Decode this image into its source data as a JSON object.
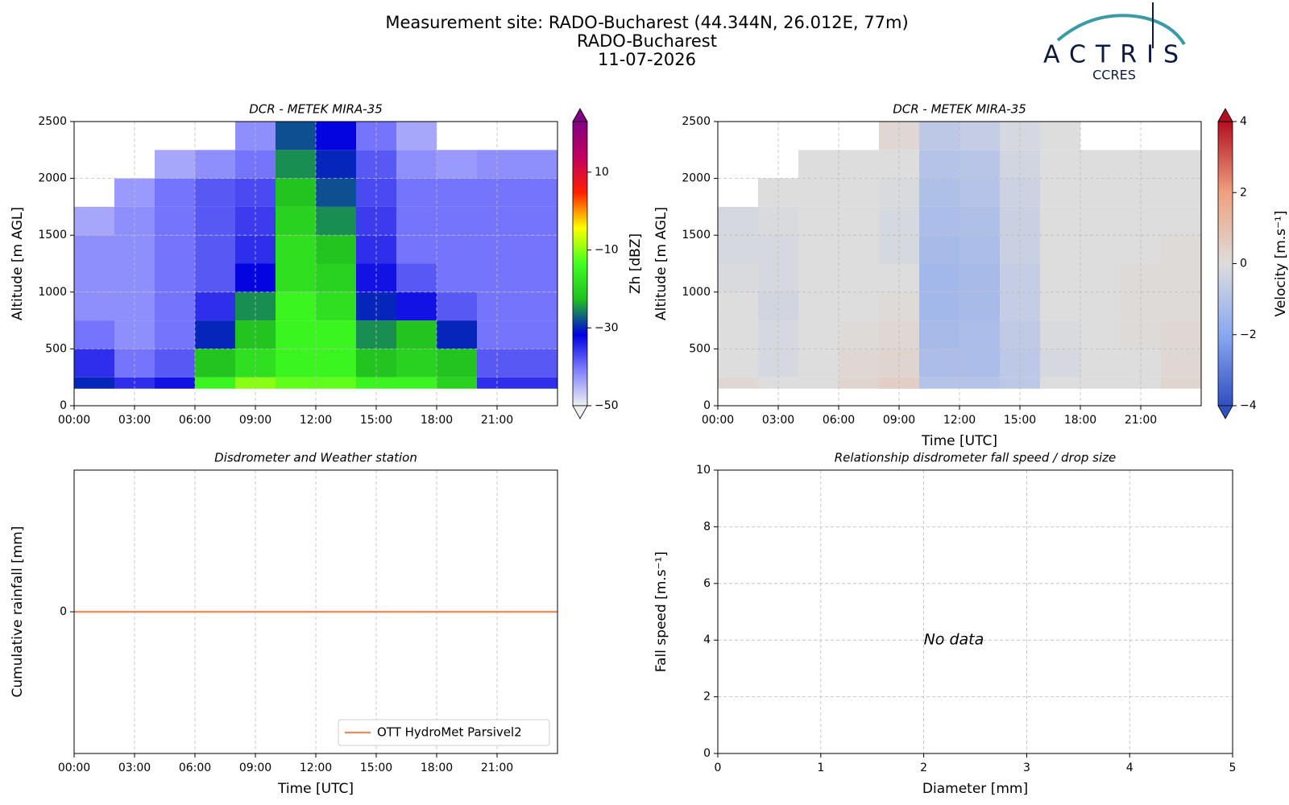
{
  "header": {
    "title": "Measurement site: RADO-Bucharest (44.344N, 26.012E, 77m)",
    "subtitle": "RADO-Bucharest",
    "date": "11-07-2026",
    "logo_text": "ACTRIS",
    "logo_sub": "CCRES"
  },
  "chart_data": [
    {
      "type": "heatmap",
      "title": "DCR - METEK MIRA-35",
      "y_label": "Altitude [m AGL]",
      "xlim": [
        0,
        24
      ],
      "xticks": [
        {
          "value": 0,
          "label": "00:00"
        },
        {
          "value": 3,
          "label": "03:00"
        },
        {
          "value": 6,
          "label": "06:00"
        },
        {
          "value": 9,
          "label": "09:00"
        },
        {
          "value": 12,
          "label": "12:00"
        },
        {
          "value": 15,
          "label": "15:00"
        },
        {
          "value": 18,
          "label": "18:00"
        },
        {
          "value": 21,
          "label": "21:00"
        }
      ],
      "ylim": [
        0,
        2500
      ],
      "yticks": [
        0,
        500,
        1000,
        1500,
        2000,
        2500
      ],
      "grid": true,
      "xbins": [
        0,
        2,
        4,
        6,
        8,
        10,
        12,
        14,
        16,
        18,
        20,
        22,
        24
      ],
      "ybins": [
        150,
        250,
        500,
        750,
        1000,
        1250,
        1500,
        1750,
        2000,
        2250,
        2500
      ],
      "z": [
        [
          -30,
          -35,
          -33,
          -15,
          -10,
          -12,
          -12,
          -15,
          -15,
          -20,
          -35,
          -35
        ],
        [
          -35,
          -40,
          -38,
          -22,
          -18,
          -15,
          -15,
          -22,
          -20,
          -22,
          -38,
          -38
        ],
        [
          -40,
          -42,
          -40,
          -30,
          -22,
          -15,
          -15,
          -25,
          -22,
          -30,
          -40,
          -40
        ],
        [
          -42,
          -42,
          -40,
          -35,
          -25,
          -15,
          -18,
          -30,
          -33,
          -38,
          -40,
          -40
        ],
        [
          -42,
          -42,
          -40,
          -38,
          -32,
          -18,
          -20,
          -33,
          -38,
          -40,
          -40,
          -40
        ],
        [
          -42,
          -42,
          -40,
          -38,
          -35,
          -18,
          -22,
          -35,
          -40,
          -40,
          -40,
          -40
        ],
        [
          -44,
          -42,
          -40,
          -38,
          -36,
          -20,
          -25,
          -36,
          -40,
          -40,
          -40,
          -40
        ],
        [
          null,
          -43,
          -40,
          -38,
          -37,
          -22,
          -28,
          -37,
          -40,
          -40,
          -40,
          -40
        ],
        [
          null,
          null,
          -44,
          -42,
          -40,
          -25,
          -30,
          -38,
          -42,
          -43,
          -42,
          -42
        ],
        [
          null,
          null,
          null,
          null,
          -42,
          -28,
          -32,
          -40,
          -44,
          null,
          null,
          null
        ]
      ],
      "colorbar_label": "Zh [dBZ]",
      "zlim": [
        -50,
        23
      ],
      "zticks": [
        {
          "value": -50,
          "label": "−50"
        },
        {
          "value": -30,
          "label": "−30"
        },
        {
          "value": -10,
          "label": "−10"
        },
        10
      ],
      "colormap": [
        "#f0f0f0",
        "#8080ff",
        "#0000e0",
        "#20c020",
        "#40ff20",
        "#ffff00",
        "#ff2000",
        "#c00060",
        "#800080"
      ]
    },
    {
      "type": "heatmap",
      "title": "DCR - METEK MIRA-35",
      "y_label": "Altitude [m AGL]",
      "x_label": "Time [UTC]",
      "xlim": [
        0,
        24
      ],
      "xticks": [
        {
          "value": 0,
          "label": "00:00"
        },
        {
          "value": 3,
          "label": "03:00"
        },
        {
          "value": 6,
          "label": "06:00"
        },
        {
          "value": 9,
          "label": "09:00"
        },
        {
          "value": 12,
          "label": "12:00"
        },
        {
          "value": 15,
          "label": "15:00"
        },
        {
          "value": 18,
          "label": "18:00"
        },
        {
          "value": 21,
          "label": "21:00"
        }
      ],
      "ylim": [
        0,
        2500
      ],
      "yticks": [
        0,
        500,
        1000,
        1500,
        2000,
        2500
      ],
      "grid": true,
      "xbins": [
        0,
        2,
        4,
        6,
        8,
        10,
        12,
        14,
        16,
        18,
        20,
        22,
        24
      ],
      "ybins": [
        150,
        250,
        500,
        750,
        1000,
        1250,
        1500,
        1750,
        2000,
        2250,
        2500
      ],
      "z": [
        [
          0.2,
          0,
          0,
          0.3,
          0.5,
          -1,
          -1,
          -0.8,
          0,
          0,
          0,
          0.3
        ],
        [
          0,
          -0.2,
          0,
          0.2,
          0.3,
          -1.2,
          -1.2,
          -0.8,
          -0.2,
          0,
          0,
          0.2
        ],
        [
          0,
          -0.2,
          0,
          0.1,
          0.2,
          -1.3,
          -1.2,
          -0.7,
          -0.1,
          0,
          0.1,
          0.2
        ],
        [
          0,
          -0.3,
          0,
          0,
          0.1,
          -1.4,
          -1.3,
          -0.6,
          0,
          0,
          0.1,
          0.1
        ],
        [
          -0.1,
          -0.2,
          0,
          0,
          0,
          -1.4,
          -1.3,
          -0.6,
          0,
          0,
          0.1,
          0.1
        ],
        [
          -0.2,
          -0.2,
          0,
          0,
          -0.2,
          -1.3,
          -1.2,
          -0.5,
          0,
          0,
          0,
          0.1
        ],
        [
          -0.2,
          -0.1,
          0,
          0,
          -0.2,
          -1.2,
          -1.1,
          -0.5,
          0,
          0,
          0,
          0
        ],
        [
          null,
          0,
          0,
          0,
          -0.1,
          -1.1,
          -1,
          -0.4,
          0,
          0,
          0,
          0
        ],
        [
          null,
          null,
          0,
          0,
          0,
          -1,
          -0.9,
          -0.3,
          0,
          0,
          0,
          0
        ],
        [
          null,
          null,
          null,
          null,
          0.2,
          -0.8,
          -0.6,
          -0.2,
          0,
          null,
          null,
          null
        ]
      ],
      "colorbar_label": "Velocity [m.s⁻¹]",
      "zlim": [
        -4,
        4
      ],
      "zticks": [
        {
          "value": -4,
          "label": "−4"
        },
        {
          "value": -2,
          "label": "−2"
        },
        0,
        2,
        4
      ],
      "colormap": [
        "#3050c0",
        "#8aa8f0",
        "#dddddd",
        "#f0a080",
        "#b01020"
      ]
    },
    {
      "type": "line",
      "title": "Disdrometer and Weather station",
      "y_label": "Cumulative rainfall [mm]",
      "x_label": "Time [UTC]",
      "xlim": [
        0,
        24
      ],
      "xticks": [
        {
          "value": 0,
          "label": "00:00"
        },
        {
          "value": 3,
          "label": "03:00"
        },
        {
          "value": 6,
          "label": "06:00"
        },
        {
          "value": 9,
          "label": "09:00"
        },
        {
          "value": 12,
          "label": "12:00"
        },
        {
          "value": 15,
          "label": "15:00"
        },
        {
          "value": 18,
          "label": "18:00"
        },
        {
          "value": 21,
          "label": "21:00"
        }
      ],
      "ylim": [
        -0.055,
        0.055
      ],
      "yticks": [
        0
      ],
      "grid": true,
      "legend": "lower right",
      "x": [
        0,
        24
      ],
      "series": [
        {
          "name": "OTT HydroMet Parsivel2",
          "color": "#f08a5d",
          "values": [
            0,
            0
          ]
        }
      ]
    },
    {
      "type": "scatter",
      "title": "Relationship disdrometer fall speed / drop size",
      "y_label": "Fall speed [m.s⁻¹]",
      "x_label": "Diameter [mm]",
      "xlim": [
        0,
        5
      ],
      "xticks": [
        0,
        1,
        2,
        3,
        4,
        5
      ],
      "ylim": [
        0,
        10
      ],
      "yticks": [
        0,
        2,
        4,
        6,
        8,
        10
      ],
      "grid": true,
      "annotation": "No data",
      "x": [],
      "values": []
    }
  ]
}
